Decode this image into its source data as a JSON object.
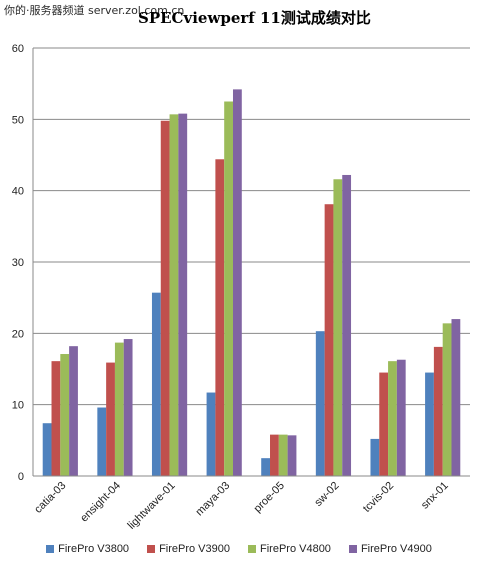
{
  "watermark": "你的·服务器频道 server.zol.com.cn",
  "chart_data": {
    "type": "bar",
    "title": "SPECviewperf 11测试成绩对比",
    "categories": [
      "catia-03",
      "ensight-04",
      "lightwave-01",
      "maya-03",
      "proe-05",
      "sw-02",
      "tcvis-02",
      "snx-01"
    ],
    "series": [
      {
        "name": "FirePro V3800",
        "color": "#4f81bd",
        "values": [
          7.4,
          9.6,
          25.7,
          11.7,
          2.5,
          20.3,
          5.2,
          14.5
        ]
      },
      {
        "name": "FirePro V3900",
        "color": "#c0504d",
        "values": [
          16.1,
          15.9,
          49.8,
          44.4,
          5.8,
          38.1,
          14.5,
          18.1
        ]
      },
      {
        "name": "FirePro V4800",
        "color": "#9bbb59",
        "values": [
          17.1,
          18.7,
          50.7,
          52.5,
          5.8,
          41.6,
          16.1,
          21.4
        ]
      },
      {
        "name": "FirePro V4900",
        "color": "#8064a2",
        "values": [
          18.2,
          19.2,
          50.8,
          54.2,
          5.7,
          42.2,
          16.3,
          22.0
        ]
      }
    ],
    "ylim": [
      0,
      60
    ],
    "yticks": [
      0,
      10,
      20,
      30,
      40,
      50,
      60
    ],
    "grid": true,
    "legend": "bottom"
  }
}
